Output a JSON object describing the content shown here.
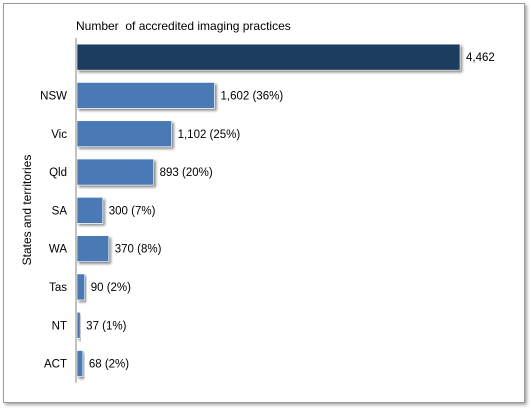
{
  "chart_data": {
    "type": "bar",
    "orientation": "horizontal",
    "title": "Number  of accredited imaging practices",
    "ylabel": "States and territories",
    "xlabel": "",
    "categories": [
      "",
      "NSW",
      "Vic",
      "Qld",
      "SA",
      "WA",
      "Tas",
      "NT",
      "ACT"
    ],
    "values": [
      4462,
      1602,
      1102,
      893,
      300,
      370,
      90,
      37,
      68
    ],
    "data_labels": [
      "4,462",
      "1,602 (36%)",
      "1,102 (25%)",
      "893 (20%)",
      "300 (7%)",
      "370 (8%)",
      "90 (2%)",
      "37 (1%)",
      "68 (2%)"
    ],
    "xlim": [
      0,
      4462
    ],
    "colors": {
      "total": "#1f3d5e",
      "state": "#4a7ab5"
    },
    "grid": false,
    "legend": "none"
  }
}
